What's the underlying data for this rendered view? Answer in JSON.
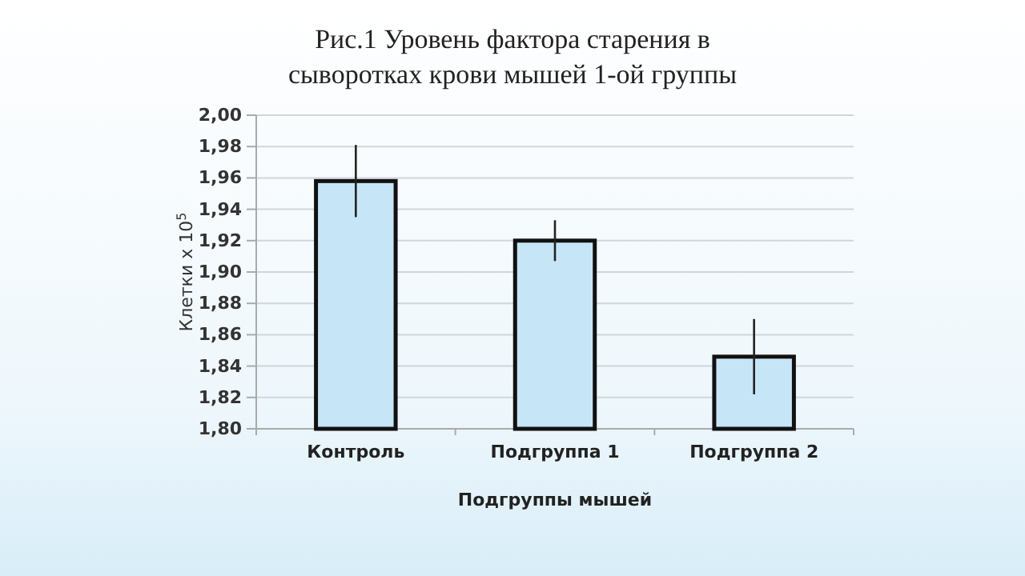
{
  "chart_data": {
    "type": "bar",
    "title": "Рис.1  Уровень фактора старения в сыворотках крови мышей 1-ой группы",
    "xlabel": "Подгруппы мышей",
    "ylabel": "Клетки х 10$^{5}$",
    "categories": [
      "Контроль",
      "Подгруппа 1",
      "Подгруппа 2"
    ],
    "values": [
      1.958,
      1.92,
      1.846
    ],
    "errors": [
      0.023,
      0.013,
      0.024
    ],
    "color": "#c6e6f8",
    "ylim": [
      1.8,
      2.0
    ],
    "yticks": [
      {
        "value": 1.8,
        "label": "1,80"
      },
      {
        "value": 1.82,
        "label": "1,82"
      },
      {
        "value": 1.84,
        "label": "1,84"
      },
      {
        "value": 1.86,
        "label": "1,86"
      },
      {
        "value": 1.88,
        "label": "1,88"
      },
      {
        "value": 1.9,
        "label": "1,90"
      },
      {
        "value": 1.92,
        "label": "1,92"
      },
      {
        "value": 1.94,
        "label": "1,94"
      },
      {
        "value": 1.96,
        "label": "1,96"
      },
      {
        "value": 1.98,
        "label": "1,98"
      },
      {
        "value": 2.0,
        "label": "2,00"
      }
    ],
    "grid": "y"
  }
}
